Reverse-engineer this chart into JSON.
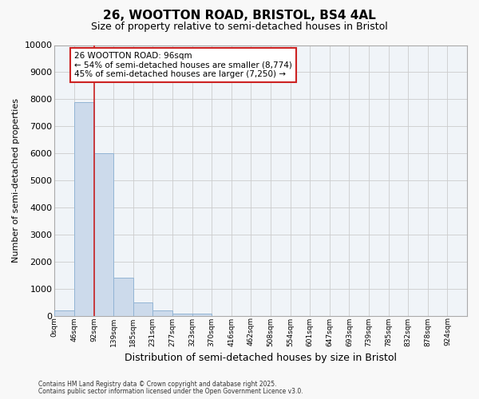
{
  "title_line1": "26, WOOTTON ROAD, BRISTOL, BS4 4AL",
  "title_line2": "Size of property relative to semi-detached houses in Bristol",
  "xlabel": "Distribution of semi-detached houses by size in Bristol",
  "ylabel": "Number of semi-detached properties",
  "bin_labels": [
    "0sqm",
    "46sqm",
    "92sqm",
    "139sqm",
    "185sqm",
    "231sqm",
    "277sqm",
    "323sqm",
    "370sqm",
    "416sqm",
    "462sqm",
    "508sqm",
    "554sqm",
    "601sqm",
    "647sqm",
    "693sqm",
    "739sqm",
    "785sqm",
    "832sqm",
    "878sqm",
    "924sqm"
  ],
  "bar_values": [
    200,
    7900,
    6000,
    1400,
    500,
    200,
    100,
    100,
    0,
    0,
    0,
    0,
    0,
    0,
    0,
    0,
    0,
    0,
    0,
    0
  ],
  "bar_color": "#ccdaeb",
  "bar_edge_color": "#92b4d4",
  "property_line_x": 92,
  "red_line_color": "#cc2222",
  "annotation_text": "26 WOOTTON ROAD: 96sqm\n← 54% of semi-detached houses are smaller (8,774)\n45% of semi-detached houses are larger (7,250) →",
  "annotation_box_edgecolor": "#cc2222",
  "ylim_max": 10000,
  "yticks": [
    0,
    1000,
    2000,
    3000,
    4000,
    5000,
    6000,
    7000,
    8000,
    9000,
    10000
  ],
  "grid_color": "#cccccc",
  "plot_bg_color": "#f0f4f8",
  "fig_bg_color": "#f8f8f8",
  "footer_line1": "Contains HM Land Registry data © Crown copyright and database right 2025.",
  "footer_line2": "Contains public sector information licensed under the Open Government Licence v3.0.",
  "bin_width": 46,
  "n_bars": 20
}
